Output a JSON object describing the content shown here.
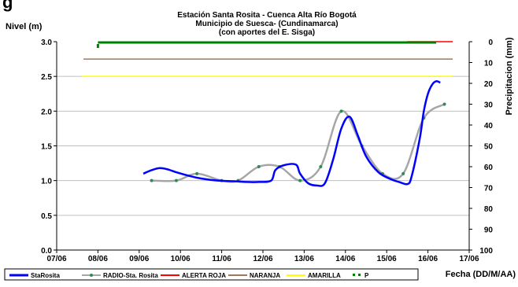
{
  "chart_data": {
    "type": "line",
    "title": "Estación Santa Rosita - Cuenca Alta Río Bogotá",
    "subtitle_lines": [
      "Municipio de Suesca- (Cundinamarca)",
      "(con aportes del  E. Sisga)"
    ],
    "top_left_fragment": "g",
    "ylabel": "Nivel (m)",
    "y2label": "Precipitacion (mm)",
    "xlabel": "Fecha (DD/M/AA)",
    "x_ticks": [
      "07/06",
      "08/06",
      "09/06",
      "10/06",
      "11/06",
      "12/06",
      "13/06",
      "14/06",
      "15/06",
      "16/06",
      "17/06"
    ],
    "y_ticks": [
      "0.0",
      "0.5",
      "1.0",
      "1.5",
      "2.0",
      "2.5",
      "3.0"
    ],
    "y2_ticks": [
      "0",
      "10",
      "20",
      "30",
      "40",
      "50",
      "60",
      "70",
      "80",
      "90",
      "100"
    ],
    "xlim": [
      0,
      10
    ],
    "ylim": [
      0,
      3
    ],
    "y2lim": [
      0,
      100
    ],
    "series": [
      {
        "name": "StaRosita",
        "color": "#0000ff",
        "points": [
          [
            2.1,
            1.1
          ],
          [
            2.3,
            1.15
          ],
          [
            2.5,
            1.18
          ],
          [
            2.7,
            1.16
          ],
          [
            2.9,
            1.12
          ],
          [
            3.2,
            1.07
          ],
          [
            3.5,
            1.03
          ],
          [
            3.9,
            1.0
          ],
          [
            4.3,
            0.99
          ],
          [
            4.6,
            0.98
          ],
          [
            4.9,
            0.98
          ],
          [
            5.2,
            1.0
          ],
          [
            5.3,
            1.15
          ],
          [
            5.5,
            1.22
          ],
          [
            5.8,
            1.23
          ],
          [
            5.9,
            1.1
          ],
          [
            6.1,
            0.96
          ],
          [
            6.3,
            0.93
          ],
          [
            6.5,
            0.96
          ],
          [
            6.7,
            1.3
          ],
          [
            6.9,
            1.75
          ],
          [
            7.1,
            1.92
          ],
          [
            7.3,
            1.65
          ],
          [
            7.5,
            1.35
          ],
          [
            7.8,
            1.12
          ],
          [
            8.1,
            1.02
          ],
          [
            8.3,
            0.98
          ],
          [
            8.5,
            0.95
          ],
          [
            8.6,
            1.05
          ],
          [
            8.8,
            1.6
          ],
          [
            8.9,
            2.0
          ],
          [
            9.0,
            2.25
          ],
          [
            9.1,
            2.38
          ],
          [
            9.2,
            2.43
          ],
          [
            9.3,
            2.41
          ]
        ]
      },
      {
        "name": "RADIO-Sta. Rosita",
        "color": "#a6a6a6",
        "marker_color": "#2e8b57",
        "points": [
          [
            2.3,
            1.0
          ],
          [
            2.9,
            1.0
          ],
          [
            3.4,
            1.1
          ],
          [
            4.0,
            1.0
          ],
          [
            4.4,
            1.0
          ],
          [
            4.9,
            1.2
          ],
          [
            5.4,
            1.2
          ],
          [
            5.9,
            1.0
          ],
          [
            6.4,
            1.2
          ],
          [
            6.9,
            2.0
          ],
          [
            7.4,
            1.5
          ],
          [
            7.9,
            1.1
          ],
          [
            8.4,
            1.1
          ],
          [
            8.9,
            1.9
          ],
          [
            9.4,
            2.1
          ]
        ]
      },
      {
        "name": "ALERTA ROJA",
        "color": "#ff0000",
        "points": [
          [
            8.5,
            3.0
          ],
          [
            9.6,
            3.0
          ]
        ]
      },
      {
        "name": "NARANJA",
        "color": "#a0785a",
        "points": [
          [
            0.65,
            2.75
          ],
          [
            9.6,
            2.75
          ]
        ]
      },
      {
        "name": "AMARILLA",
        "color": "#ffff00",
        "points": [
          [
            0.6,
            2.5
          ],
          [
            9.6,
            2.5
          ]
        ]
      },
      {
        "name": "P",
        "color": "#008000",
        "axis": "y2",
        "points": [
          [
            1.0,
            0
          ],
          [
            9.2,
            0
          ]
        ]
      }
    ],
    "legend": [
      "StaRosita",
      "RADIO-Sta. Rosita",
      "ALERTA ROJA",
      "NARANJA",
      "AMARILLA",
      "P"
    ],
    "legend_position": "bottom",
    "grid": "horizontal"
  }
}
